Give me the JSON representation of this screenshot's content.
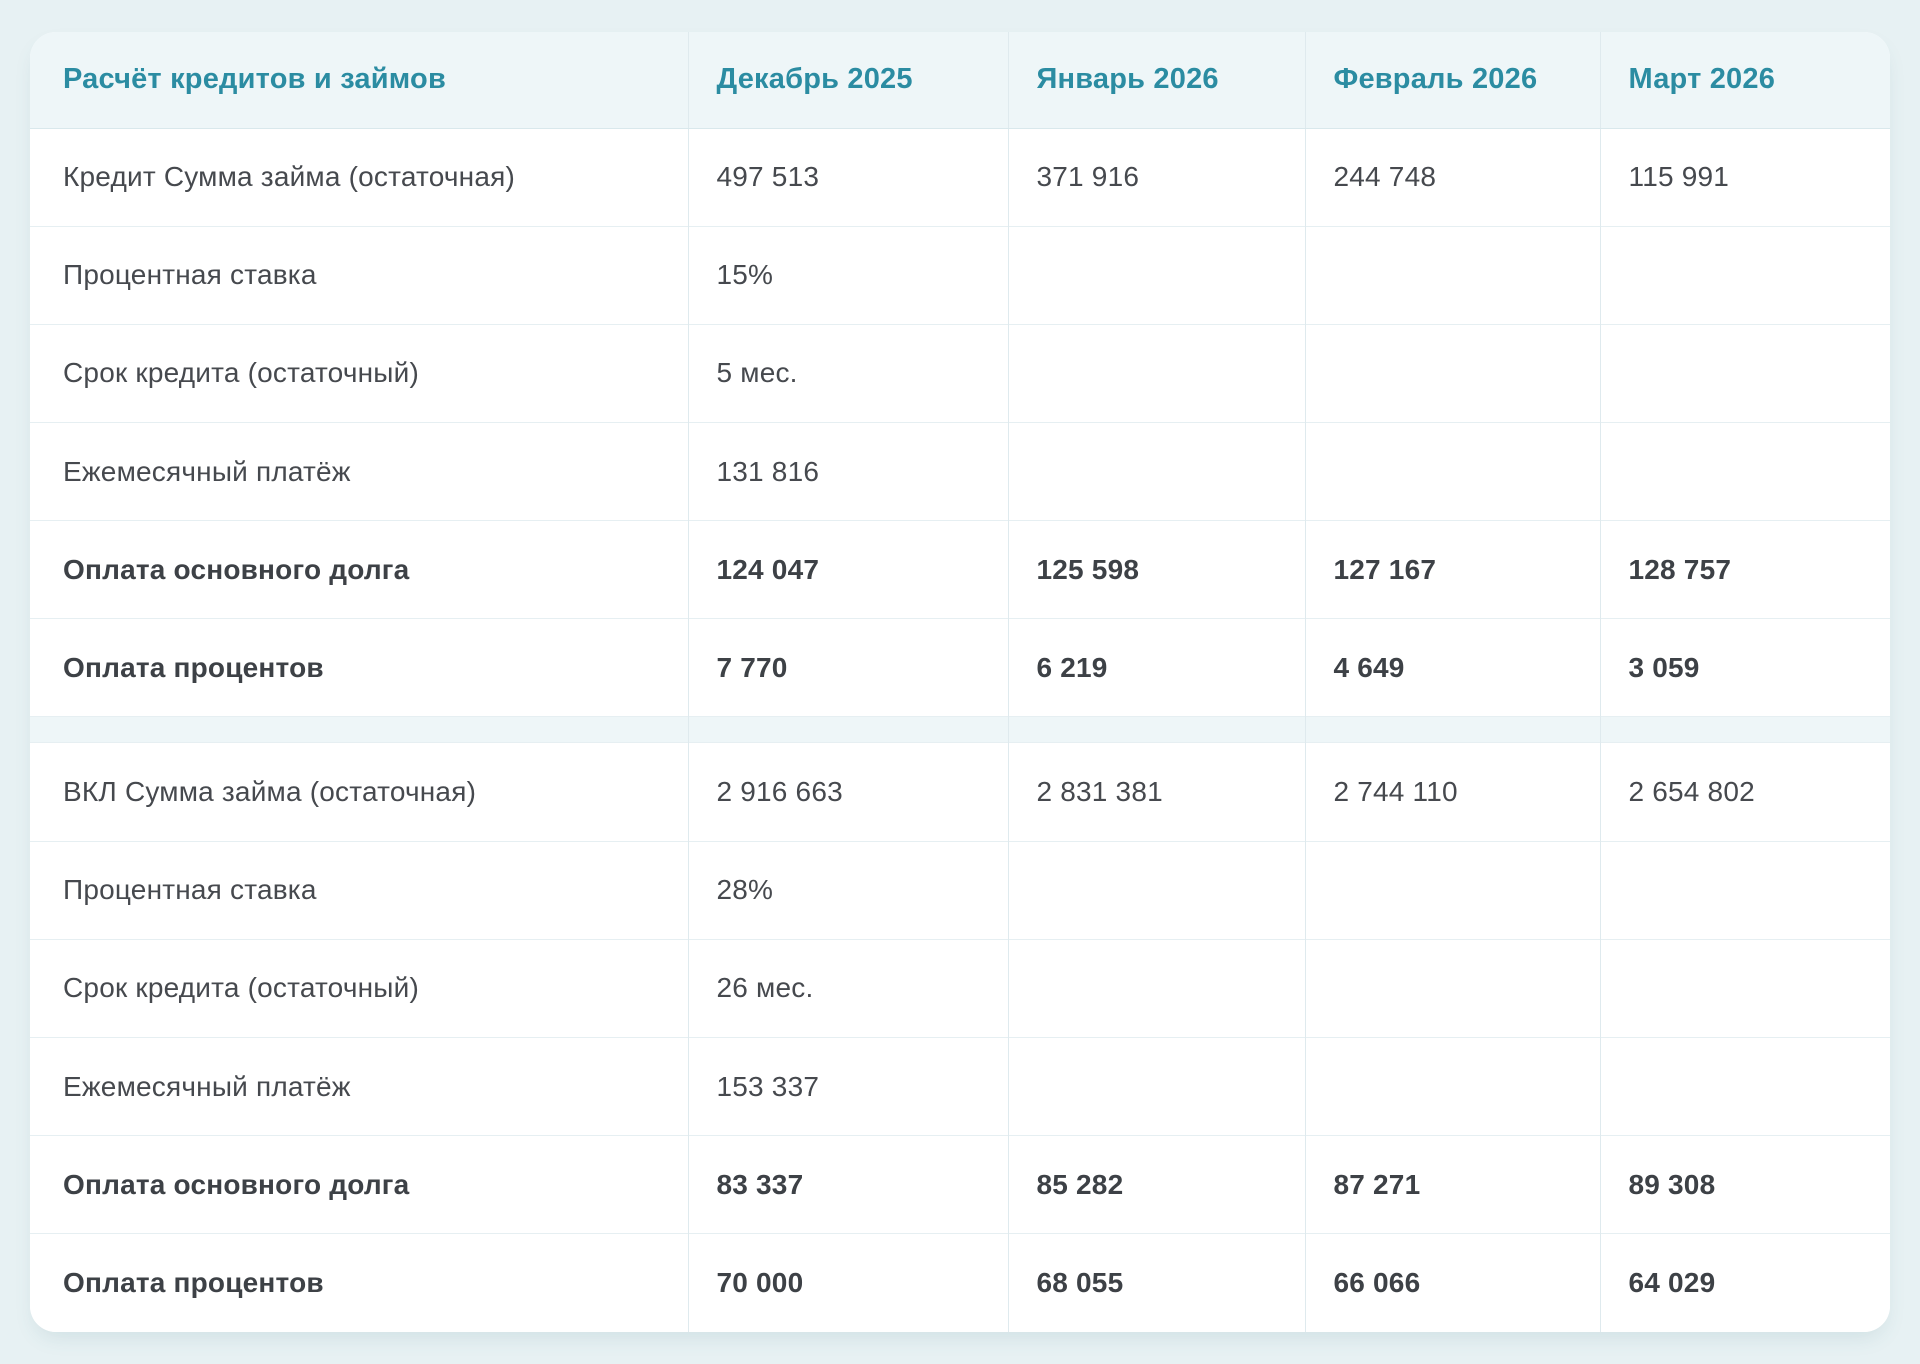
{
  "page": {
    "background_color": "#e7f1f3",
    "card_color": "#ffffff",
    "accent_color": "#2b8ca2",
    "text_color": "#46494e"
  },
  "table": {
    "title": "Расчёт кредитов и займов",
    "columns": [
      "Декабрь 2025",
      "Январь 2026",
      "Февраль 2026",
      "Март 2026"
    ],
    "rows": [
      {
        "label": "Кредит Сумма займа (остаточная)",
        "values": [
          "497 513",
          "371 916",
          "244 748",
          "115 991"
        ],
        "bold": false
      },
      {
        "label": "Процентная ставка",
        "values": [
          "15%",
          "",
          "",
          ""
        ],
        "bold": false
      },
      {
        "label": "Срок кредита (остаточный)",
        "values": [
          "5 мес.",
          "",
          "",
          ""
        ],
        "bold": false
      },
      {
        "label": "Ежемесячный платёж",
        "values": [
          "131 816",
          "",
          "",
          ""
        ],
        "bold": false
      },
      {
        "label": "Оплата основного долга",
        "values": [
          "124 047",
          "125 598",
          "127 167",
          "128 757"
        ],
        "bold": true
      },
      {
        "label": "Оплата процентов",
        "values": [
          "7 770",
          "6 219",
          "4 649",
          "3 059"
        ],
        "bold": true
      },
      {
        "separator": true
      },
      {
        "label": "ВКЛ Сумма займа (остаточная)",
        "values": [
          "2 916 663",
          "2 831 381",
          "2 744 110",
          "2 654 802"
        ],
        "bold": false
      },
      {
        "label": "Процентная ставка",
        "values": [
          "28%",
          "",
          "",
          ""
        ],
        "bold": false
      },
      {
        "label": "Срок кредита (остаточный)",
        "values": [
          "26 мес.",
          "",
          "",
          ""
        ],
        "bold": false
      },
      {
        "label": "Ежемесячный платёж",
        "values": [
          "153 337",
          "",
          "",
          ""
        ],
        "bold": false
      },
      {
        "label": "Оплата основного долга",
        "values": [
          "83 337",
          "85 282",
          "87 271",
          "89 308"
        ],
        "bold": true
      },
      {
        "label": "Оплата процентов",
        "values": [
          "70 000",
          "68 055",
          "66 066",
          "64 029"
        ],
        "bold": true
      }
    ]
  }
}
